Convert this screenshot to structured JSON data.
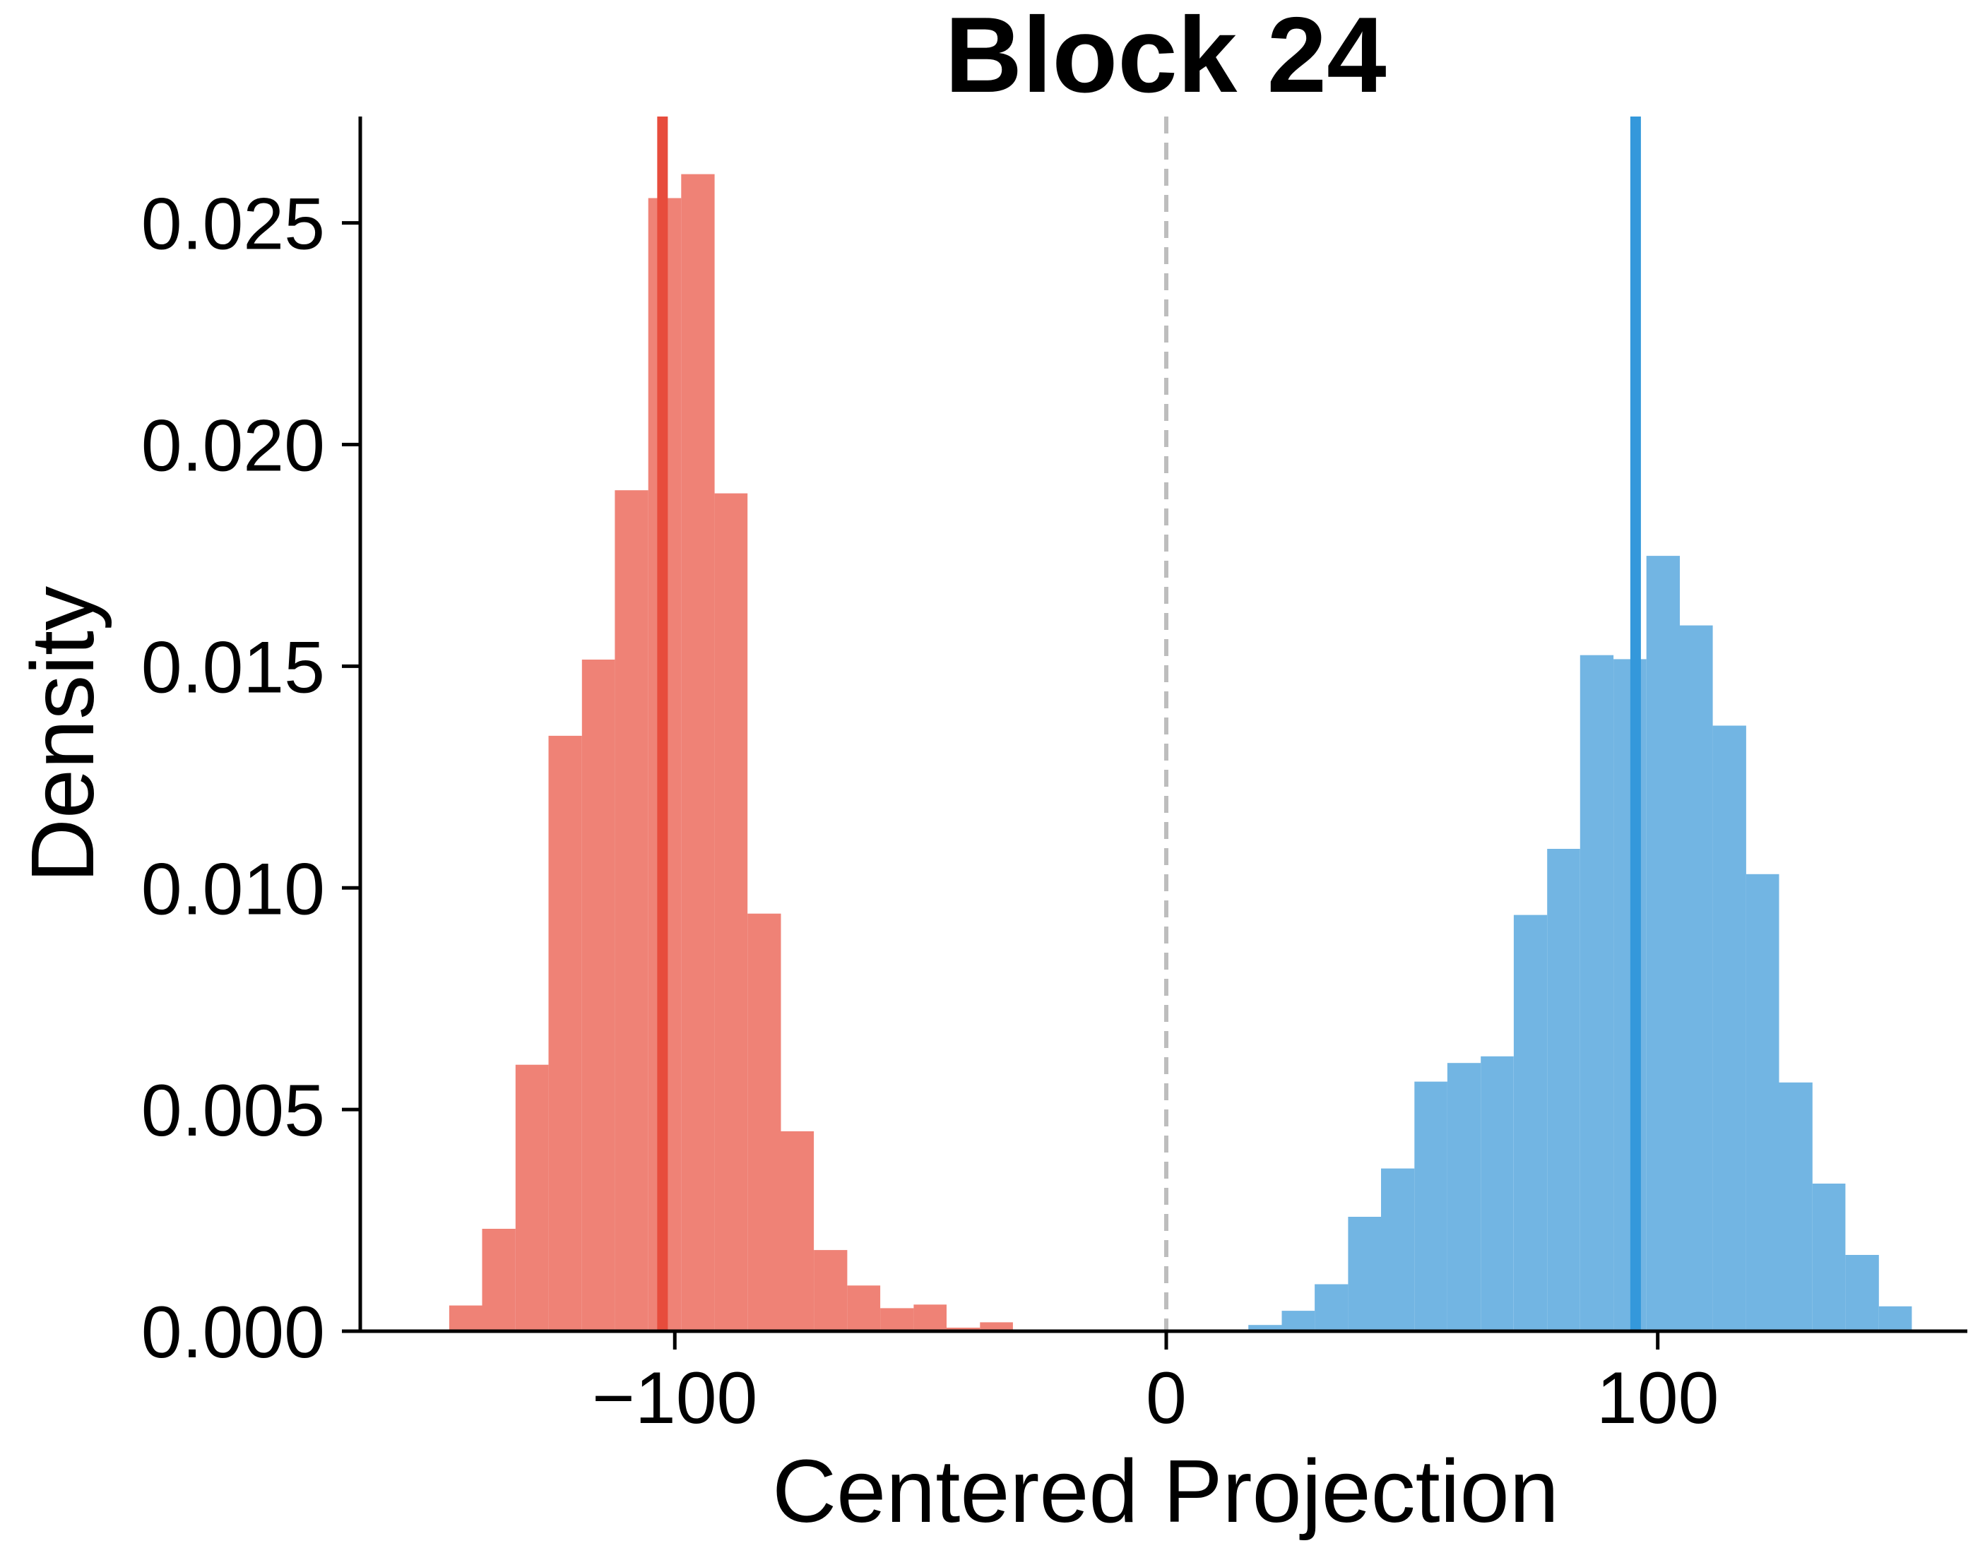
{
  "chart_data": {
    "type": "histogram",
    "title": "Block 24",
    "xlabel": "Centered Projection",
    "ylabel": "Density",
    "xlim": [
      -164,
      163
    ],
    "ylim": [
      0,
      0.0274
    ],
    "xticks": [
      -100,
      0,
      100
    ],
    "xtick_labels": [
      "−100",
      "0",
      "100"
    ],
    "yticks": [
      0.0,
      0.005,
      0.01,
      0.015,
      0.02,
      0.025
    ],
    "ytick_labels": [
      "0.000",
      "0.005",
      "0.010",
      "0.015",
      "0.020",
      "0.025"
    ],
    "grid": false,
    "legend": "none",
    "reference_line": {
      "x": 0,
      "style": "dashed",
      "color": "#bdbdbd"
    },
    "series": [
      {
        "color": "#e74c3c",
        "fill_color": "#ef8276",
        "mean": -102.5,
        "bins": [
          [
            -145.9,
            -139.2,
            0.00058
          ],
          [
            -139.2,
            -132.4,
            0.00231
          ],
          [
            -132.4,
            -125.7,
            0.00601
          ],
          [
            -125.7,
            -118.9,
            0.01343
          ],
          [
            -118.9,
            -112.2,
            0.01515
          ],
          [
            -112.2,
            -105.4,
            0.01897
          ],
          [
            -105.4,
            -98.7,
            0.02556
          ],
          [
            -98.7,
            -91.9,
            0.0261
          ],
          [
            -91.9,
            -85.2,
            0.0189
          ],
          [
            -85.2,
            -78.4,
            0.00942
          ],
          [
            -78.4,
            -71.7,
            0.00451
          ],
          [
            -71.7,
            -64.9,
            0.00183
          ],
          [
            -64.9,
            -58.2,
            0.00103
          ],
          [
            -58.2,
            -51.4,
            0.00052
          ],
          [
            -51.4,
            -44.7,
            0.0006
          ],
          [
            -44.7,
            -37.9,
            8e-05
          ],
          [
            -37.9,
            -31.2,
            0.0002
          ],
          [
            -31.2,
            -24.4,
            0.0
          ],
          [
            -24.4,
            -17.7,
            3e-05
          ]
        ]
      },
      {
        "color": "#3498db",
        "fill_color": "#72b5e3",
        "mean": 95.5,
        "bins": [
          [
            16.7,
            23.5,
            0.00014
          ],
          [
            23.5,
            30.2,
            0.00046
          ],
          [
            30.2,
            37.0,
            0.00106
          ],
          [
            37.0,
            43.7,
            0.00258
          ],
          [
            43.7,
            50.5,
            0.00367
          ],
          [
            50.5,
            57.2,
            0.00563
          ],
          [
            57.2,
            64.0,
            0.00605
          ],
          [
            64.0,
            70.7,
            0.0062
          ],
          [
            70.7,
            77.5,
            0.00939
          ],
          [
            77.5,
            84.2,
            0.01088
          ],
          [
            84.2,
            91.0,
            0.01525
          ],
          [
            91.0,
            97.7,
            0.01516
          ],
          [
            97.7,
            104.5,
            0.01749
          ],
          [
            104.5,
            111.2,
            0.01592
          ],
          [
            111.2,
            118.0,
            0.01366
          ],
          [
            118.0,
            124.7,
            0.01031
          ],
          [
            124.7,
            131.5,
            0.00561
          ],
          [
            131.5,
            138.2,
            0.00333
          ],
          [
            138.2,
            145.0,
            0.00172
          ],
          [
            145.0,
            151.7,
            0.00056
          ]
        ]
      }
    ]
  }
}
